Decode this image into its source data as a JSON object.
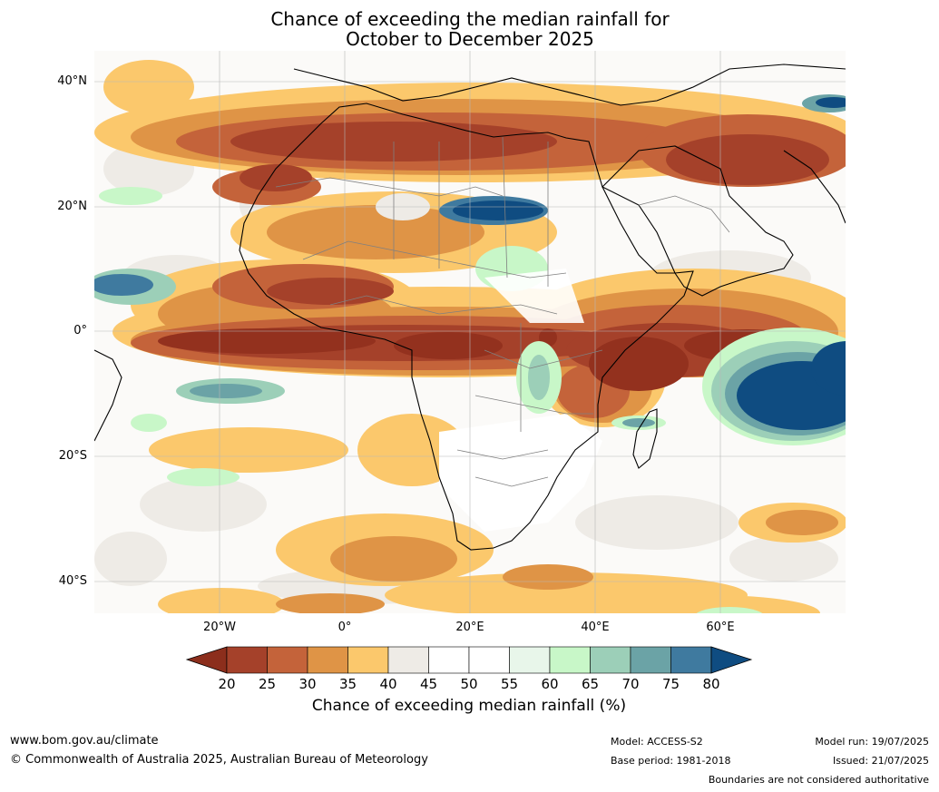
{
  "title": {
    "line1": "Chance of exceeding the median rainfall for",
    "line2": "October to December 2025"
  },
  "axes": {
    "lat_labels": [
      "40°N",
      "20°N",
      "0°",
      "20°S",
      "40°S"
    ],
    "lon_labels": [
      "20°W",
      "0°",
      "20°E",
      "40°E",
      "60°E"
    ]
  },
  "colorbar": {
    "title": "Chance of exceeding median rainfall (%)",
    "ticks": [
      "20",
      "25",
      "30",
      "35",
      "40",
      "45",
      "50",
      "55",
      "60",
      "65",
      "70",
      "75",
      "80"
    ],
    "low_color": "#8c2e1c",
    "high_color": "#0f4c81",
    "colors": [
      "#a5412a",
      "#c4633a",
      "#df9446",
      "#fbc86c",
      "#eeebe6",
      "#ffffff",
      "#ffffff",
      "#e8f6ea",
      "#c8f7c8",
      "#9ccfb8",
      "#6ba3a6",
      "#3f7a9f"
    ]
  },
  "map_colors": {
    "ocean_base": "#fbfaf8",
    "gray": "#eeebe6",
    "light_orange": "#fbc86c",
    "orange": "#df9446",
    "dark_orange": "#c4633a",
    "brown": "#a5412a",
    "dark_brown": "#93311e",
    "light_green": "#c8f7c8",
    "teal": "#9ccfb8",
    "dark_teal": "#6ba3a6",
    "blue": "#0f4c81",
    "coast": "#000000",
    "border": "#808080",
    "grid": "#b8b8b8"
  },
  "footer": {
    "url": "www.bom.gov.au/climate",
    "copyright": "© Commonwealth of Australia 2025, Australian Bureau of Meteorology",
    "model": "Model: ACCESS-S2",
    "base_period": "Base period: 1981-2018",
    "model_run": "Model run: 19/07/2025",
    "issued": "Issued: 21/07/2025",
    "disclaimer": "Boundaries are not considered authoritative"
  }
}
